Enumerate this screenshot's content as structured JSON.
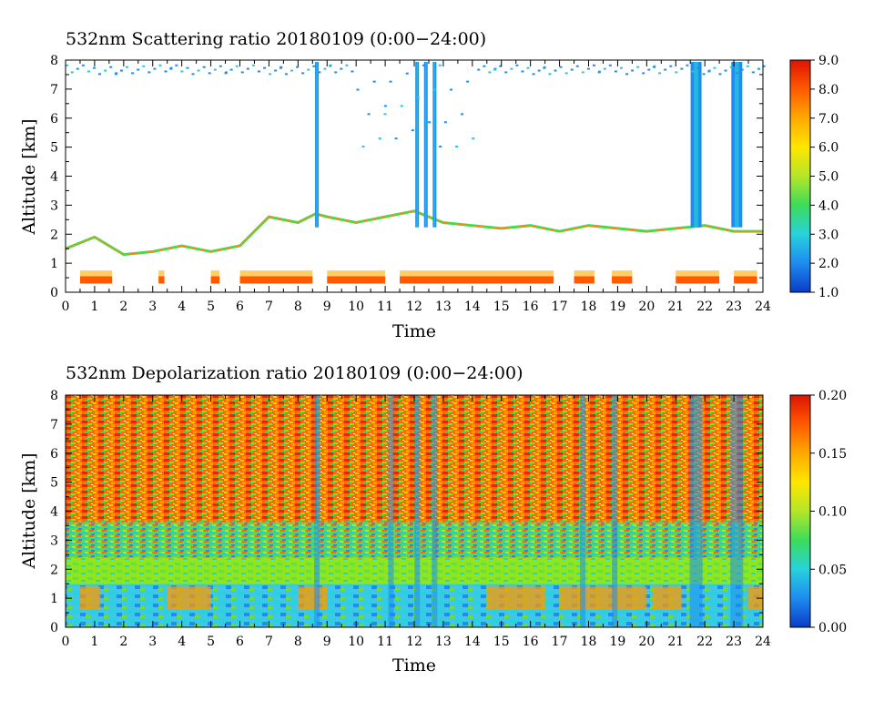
{
  "chart_data": [
    {
      "type": "heatmap",
      "title": "532nm Scattering ratio  20180109 (0:00−24:00)",
      "xlabel": "Time",
      "ylabel": "Altitude [km]",
      "xlim": [
        0,
        24
      ],
      "ylim": [
        0,
        8
      ],
      "x_ticks": [
        "0",
        "1",
        "2",
        "3",
        "4",
        "5",
        "6",
        "7",
        "8",
        "9",
        "10",
        "11",
        "12",
        "13",
        "14",
        "15",
        "16",
        "17",
        "18",
        "19",
        "20",
        "21",
        "22",
        "23",
        "24"
      ],
      "y_ticks": [
        "0",
        "1",
        "2",
        "3",
        "4",
        "5",
        "6",
        "7",
        "8"
      ],
      "colorbar": {
        "range": [
          1.0,
          9.0
        ],
        "ticks": [
          "1.0",
          "2.0",
          "3.0",
          "4.0",
          "5.0",
          "6.0",
          "7.0",
          "8.0",
          "9.0"
        ],
        "colors": [
          "#0a3cc8",
          "#1e8cf0",
          "#28d2dc",
          "#3cdc5a",
          "#b4e628",
          "#ffe600",
          "#ffaa00",
          "#ff5a00",
          "#dc1400"
        ]
      },
      "features": {
        "cloud_top_km_by_hour": [
          [
            0,
            1.5
          ],
          [
            1,
            1.9
          ],
          [
            2,
            1.3
          ],
          [
            3,
            1.4
          ],
          [
            4,
            1.6
          ],
          [
            5,
            1.4
          ],
          [
            6,
            1.6
          ],
          [
            7,
            2.6
          ],
          [
            8,
            2.4
          ],
          [
            8.6,
            2.7
          ],
          [
            9,
            2.6
          ],
          [
            10,
            2.4
          ],
          [
            11,
            2.6
          ],
          [
            12,
            2.8
          ],
          [
            13,
            2.4
          ],
          [
            14,
            2.3
          ],
          [
            15,
            2.2
          ],
          [
            16,
            2.3
          ],
          [
            17,
            2.1
          ],
          [
            18,
            2.3
          ],
          [
            19,
            2.2
          ],
          [
            20,
            2.1
          ],
          [
            21,
            2.2
          ],
          [
            22,
            2.3
          ],
          [
            23,
            2.1
          ],
          [
            24,
            2.1
          ]
        ],
        "high_ratio_low_layer_hours": [
          [
            0.5,
            1.6
          ],
          [
            3.2,
            3.4
          ],
          [
            5,
            5.3
          ],
          [
            6,
            8.5
          ],
          [
            9,
            11
          ],
          [
            11.5,
            16.8
          ],
          [
            17.5,
            18.2
          ],
          [
            18.8,
            19.5
          ],
          [
            21,
            22.5
          ],
          [
            23,
            23.8
          ]
        ],
        "vertical_columns_hours": [
          8.65,
          12.1,
          12.4,
          12.7,
          21.7,
          23.1
        ]
      }
    },
    {
      "type": "heatmap",
      "title": "532nm Depolarization ratio  20180109 (0:00−24:00)",
      "xlabel": "Time",
      "ylabel": "Altitude [km]",
      "xlim": [
        0,
        24
      ],
      "ylim": [
        0,
        8
      ],
      "x_ticks": [
        "0",
        "1",
        "2",
        "3",
        "4",
        "5",
        "6",
        "7",
        "8",
        "9",
        "10",
        "11",
        "12",
        "13",
        "14",
        "15",
        "16",
        "17",
        "18",
        "19",
        "20",
        "21",
        "22",
        "23",
        "24"
      ],
      "y_ticks": [
        "0",
        "1",
        "2",
        "3",
        "4",
        "5",
        "6",
        "7",
        "8"
      ],
      "colorbar": {
        "range": [
          0.0,
          0.2
        ],
        "ticks": [
          "0.00",
          "0.05",
          "0.10",
          "0.15",
          "0.20"
        ],
        "colors": [
          "#0a3cc8",
          "#1e8cf0",
          "#28d2dc",
          "#3cdc5a",
          "#b4e628",
          "#ffe600",
          "#ffaa00",
          "#ff5a00",
          "#dc1400"
        ]
      },
      "features": {
        "boundary_layer_top_km": 2.4,
        "low_green_band_km": [
          1.5,
          2.4
        ],
        "blue_columns_hours": [
          8.65,
          11.2,
          12.1,
          12.7,
          17.8,
          18.9,
          21.7,
          23.1
        ]
      }
    }
  ]
}
